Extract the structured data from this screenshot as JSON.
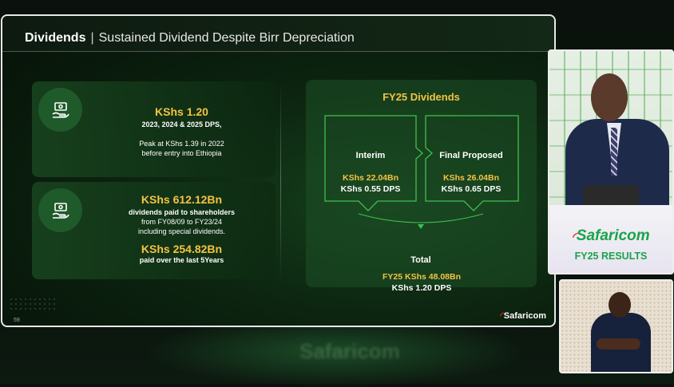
{
  "slide": {
    "title_bold": "Dividends",
    "title_separator": "|",
    "title_sub": "Sustained Dividend Despite Birr Depreciation",
    "page_number": "59",
    "logo_text": "Safaricom",
    "background_text": "Safaricom"
  },
  "left_cards": [
    {
      "icon": "money-hand-icon",
      "headline": "KShs 1.20",
      "line1": "2023, 2024 & 2025 DPS,",
      "line2": "Peak at KShs 1.39 in 2022",
      "line3": "before entry into Ethiopia"
    },
    {
      "icon": "money-hand-icon",
      "headline": "KShs 612.12Bn",
      "line1": "dividends paid to shareholders",
      "line2": "from FY08/09 to FY23/24",
      "line3": "including special dividends.",
      "headline2": "KShs 254.82Bn",
      "line4": "paid over the last 5Years"
    }
  ],
  "fy25": {
    "title": "FY25 Dividends",
    "interim": {
      "label": "Interim",
      "amount": "KShs 22.04Bn",
      "dps": "KShs 0.55 DPS"
    },
    "final": {
      "label": "Final Proposed",
      "amount": "KShs 26.04Bn",
      "dps": "KShs 0.65 DPS"
    },
    "total": {
      "label": "Total",
      "amount": "FY25 KShs 48.08Bn",
      "dps": "KShs 1.20 DPS"
    }
  },
  "video": {
    "podium_logo": "Safaricom",
    "podium_sub": "FY25 RESULTS"
  },
  "colors": {
    "accent_yellow": "#f5c342",
    "brand_green": "#1aa34a",
    "brand_red": "#e2231a",
    "line_green": "#3fc04f"
  }
}
